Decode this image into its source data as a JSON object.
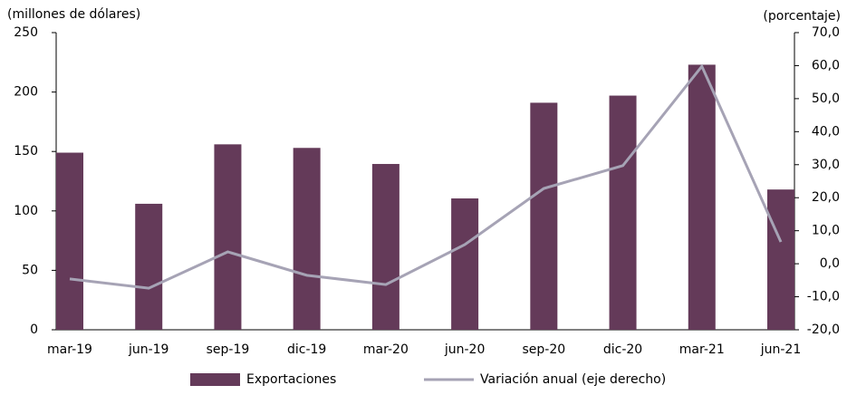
{
  "chart_data": {
    "type": "bar",
    "y_label": "(millones de dólares)",
    "y2_label": "(porcentaje)",
    "categories": [
      "mar-19",
      "jun-19",
      "sep-19",
      "dic-19",
      "mar-20",
      "jun-20",
      "sep-20",
      "dic-20",
      "mar-21",
      "jun-21"
    ],
    "series": [
      {
        "name": "Exportaciones",
        "type": "bar",
        "color": "#643a59",
        "values": [
          149,
          106,
          156,
          153,
          139.5,
          110.5,
          191,
          197,
          223,
          118
        ]
      },
      {
        "name": "Variación anual (eje derecho)",
        "type": "line",
        "axis": "y2",
        "color": "#a6a3b5",
        "values": [
          -4.6,
          -7.4,
          3.6,
          -3.5,
          -6.3,
          5.8,
          22.8,
          29.7,
          59.8,
          6.6
        ]
      }
    ],
    "ylim": [
      0,
      250
    ],
    "yticks": [
      0,
      50,
      100,
      150,
      200,
      250
    ],
    "y2lim": [
      -20,
      70
    ],
    "y2ticks": [
      {
        "value": -20,
        "label": "-20,0"
      },
      {
        "value": -10,
        "label": "-10,0"
      },
      {
        "value": 0,
        "label": "0,0"
      },
      {
        "value": 10,
        "label": "10,0"
      },
      {
        "value": 20,
        "label": "20,0"
      },
      {
        "value": 30,
        "label": "30,0"
      },
      {
        "value": 40,
        "label": "40,0"
      },
      {
        "value": 50,
        "label": "50,0"
      },
      {
        "value": 60,
        "label": "60,0"
      },
      {
        "value": 70,
        "label": "70,0"
      }
    ],
    "grid": false,
    "legend": "bottom"
  }
}
